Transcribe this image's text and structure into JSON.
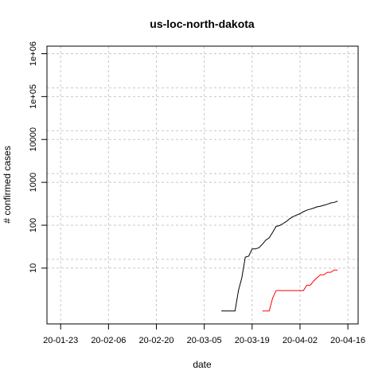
{
  "chart_data": {
    "type": "line",
    "title": "us-loc-north-dakota",
    "xlabel": "date",
    "ylabel": "# confirmed cases",
    "y_scale": "log",
    "ylim": [
      0.5,
      1500000
    ],
    "xlim": [
      "2020-01-19",
      "2020-04-19"
    ],
    "grid": true,
    "x_ticks": [
      {
        "date": "2020-01-23",
        "label": "20-01-23"
      },
      {
        "date": "2020-02-06",
        "label": "20-02-06"
      },
      {
        "date": "2020-02-20",
        "label": "20-02-20"
      },
      {
        "date": "2020-03-05",
        "label": "20-03-05"
      },
      {
        "date": "2020-03-19",
        "label": "20-03-19"
      },
      {
        "date": "2020-04-02",
        "label": "20-04-02"
      },
      {
        "date": "2020-04-16",
        "label": "20-04-16"
      }
    ],
    "y_ticks": [
      {
        "value": 10,
        "label": "10"
      },
      {
        "value": 100,
        "label": "100"
      },
      {
        "value": 1000,
        "label": "1000"
      },
      {
        "value": 10000,
        "label": "10000"
      },
      {
        "value": 100000,
        "label": "1e+05"
      },
      {
        "value": 1000000,
        "label": "1e+06"
      }
    ],
    "series": [
      {
        "color": "#000000",
        "points": [
          [
            "2020-03-10",
            1
          ],
          [
            "2020-03-11",
            1
          ],
          [
            "2020-03-12",
            1
          ],
          [
            "2020-03-13",
            1
          ],
          [
            "2020-03-14",
            1
          ],
          [
            "2020-03-15",
            3
          ],
          [
            "2020-03-16",
            6
          ],
          [
            "2020-03-17",
            18
          ],
          [
            "2020-03-18",
            19
          ],
          [
            "2020-03-19",
            28
          ],
          [
            "2020-03-20",
            28
          ],
          [
            "2020-03-21",
            30
          ],
          [
            "2020-03-22",
            36
          ],
          [
            "2020-03-23",
            45
          ],
          [
            "2020-03-24",
            51
          ],
          [
            "2020-03-25",
            68
          ],
          [
            "2020-03-26",
            94
          ],
          [
            "2020-03-27",
            98
          ],
          [
            "2020-03-28",
            109
          ],
          [
            "2020-03-29",
            122
          ],
          [
            "2020-03-30",
            142
          ],
          [
            "2020-03-31",
            159
          ],
          [
            "2020-04-01",
            173
          ],
          [
            "2020-04-02",
            186
          ],
          [
            "2020-04-03",
            207
          ],
          [
            "2020-04-04",
            225
          ],
          [
            "2020-04-05",
            237
          ],
          [
            "2020-04-06",
            251
          ],
          [
            "2020-04-07",
            269
          ],
          [
            "2020-04-08",
            278
          ],
          [
            "2020-04-09",
            293
          ],
          [
            "2020-04-10",
            308
          ],
          [
            "2020-04-11",
            331
          ],
          [
            "2020-04-12",
            341
          ],
          [
            "2020-04-13",
            365
          ]
        ]
      },
      {
        "color": "#ff0000",
        "points": [
          [
            "2020-03-22",
            1
          ],
          [
            "2020-03-23",
            1
          ],
          [
            "2020-03-24",
            1
          ],
          [
            "2020-03-25",
            2
          ],
          [
            "2020-03-26",
            3
          ],
          [
            "2020-03-27",
            3
          ],
          [
            "2020-03-28",
            3
          ],
          [
            "2020-03-29",
            3
          ],
          [
            "2020-03-30",
            3
          ],
          [
            "2020-03-31",
            3
          ],
          [
            "2020-04-01",
            3
          ],
          [
            "2020-04-02",
            3
          ],
          [
            "2020-04-03",
            3
          ],
          [
            "2020-04-04",
            4
          ],
          [
            "2020-04-05",
            4
          ],
          [
            "2020-04-06",
            5
          ],
          [
            "2020-04-07",
            6
          ],
          [
            "2020-04-08",
            7
          ],
          [
            "2020-04-09",
            7
          ],
          [
            "2020-04-10",
            8
          ],
          [
            "2020-04-11",
            8
          ],
          [
            "2020-04-12",
            9
          ],
          [
            "2020-04-13",
            9
          ]
        ]
      }
    ]
  }
}
